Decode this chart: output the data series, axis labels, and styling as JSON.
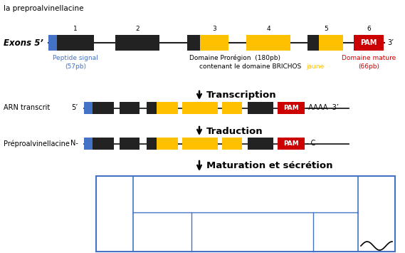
{
  "title_text": "la preproalvinellacine",
  "bg_color": "#ffffff",
  "blue_color": "#4472C4",
  "black_color": "#222222",
  "yellow_color": "#FFC000",
  "red_color": "#CC0000",
  "table_border_color": "#4472C4",
  "exon_label": "Exons 5’",
  "exon_end": "3’",
  "arn_label": "ARN transcrit",
  "prepro_label": "Préproalvinellacine",
  "transcription": "Transcription",
  "traduction": "Traduction",
  "maturation": "Maturation et sécrétion",
  "five_prime": "5’",
  "three_prime": "3’",
  "N_label": "N-",
  "C_label": "- C",
  "AAAA_label": "-AAAA  3’",
  "PAM": "PAM"
}
